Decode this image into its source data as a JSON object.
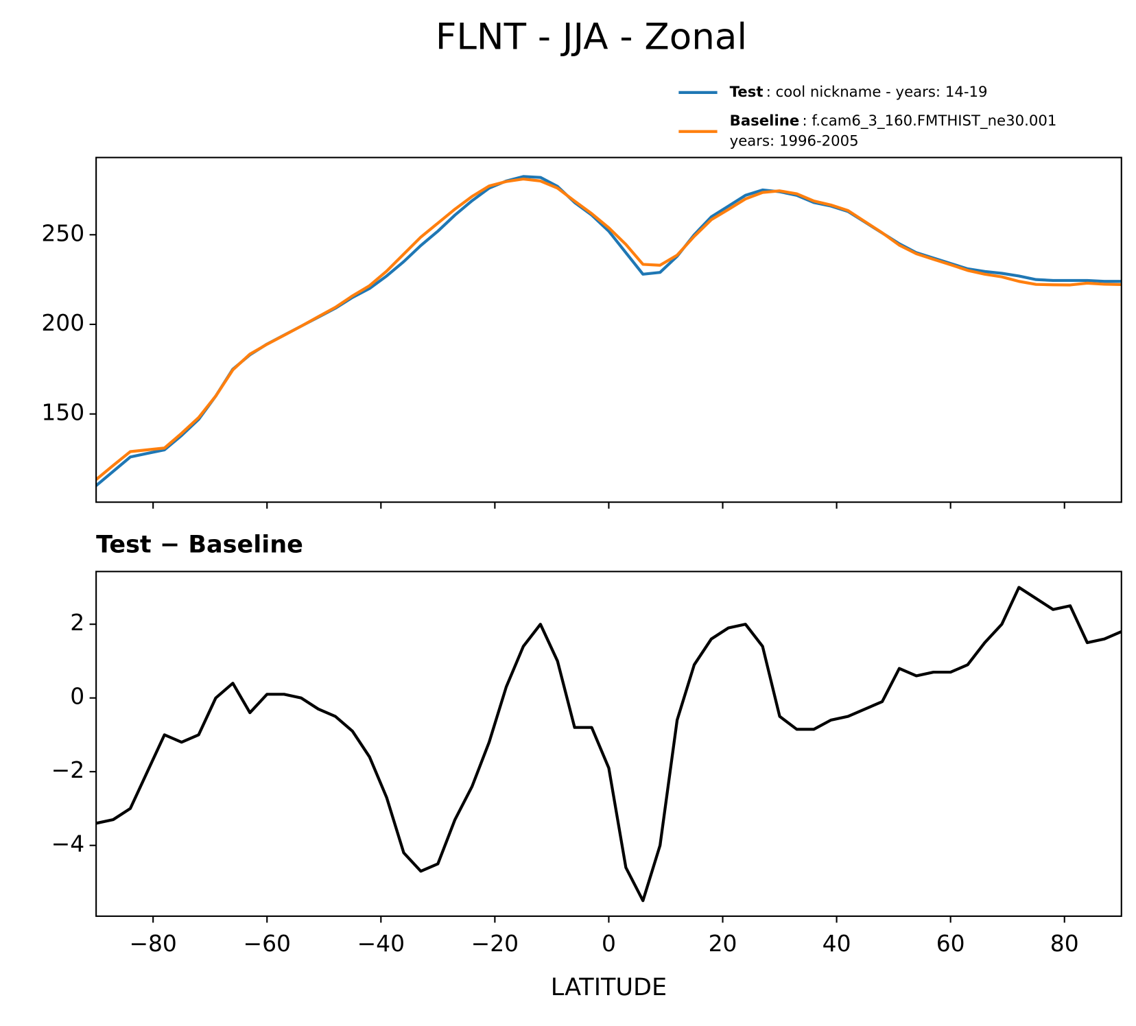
{
  "title": "FLNT - JJA - Zonal",
  "chart_data": [
    {
      "type": "line",
      "x": [
        -90,
        -87,
        -84,
        -81,
        -78,
        -75,
        -72,
        -69,
        -66,
        -63,
        -60,
        -57,
        -54,
        -51,
        -48,
        -45,
        -42,
        -39,
        -36,
        -33,
        -30,
        -27,
        -24,
        -21,
        -18,
        -15,
        -12,
        -9,
        -6,
        -3,
        0,
        3,
        6,
        9,
        12,
        15,
        18,
        21,
        24,
        27,
        30,
        33,
        36,
        39,
        42,
        45,
        48,
        51,
        54,
        57,
        60,
        63,
        66,
        69,
        72,
        75,
        78,
        81,
        84,
        87,
        90
      ],
      "series": [
        {
          "name": "Test",
          "description": [
            ": cool nickname - years: 14-19"
          ],
          "color": "#1f77b4",
          "values": [
            110,
            118,
            126,
            128,
            130,
            138,
            147,
            160,
            175,
            183,
            189,
            194,
            199,
            204,
            209,
            215,
            220,
            227,
            235,
            244,
            252,
            261,
            269,
            276,
            280,
            282.5,
            282,
            277,
            268,
            261,
            252,
            240,
            228,
            229,
            238,
            250,
            260,
            266,
            272,
            275,
            274,
            272,
            268,
            266,
            263,
            257,
            251,
            245,
            240,
            237,
            234,
            231,
            229.5,
            228.5,
            227,
            225,
            224.5,
            224.5,
            224.5,
            224,
            224
          ]
        },
        {
          "name": "Baseline",
          "description": [
            ": f.cam6_3_160.FMTHIST_ne30.001",
            "years: 1996-2005"
          ],
          "color": "#ff7f0e",
          "values": [
            113.4,
            121.3,
            129,
            130,
            131,
            139.2,
            148,
            160,
            174.6,
            183.4,
            188.9,
            193.9,
            199,
            204.3,
            209.5,
            215.9,
            221.6,
            229.7,
            239.2,
            248.7,
            256.5,
            264.3,
            271.4,
            277.2,
            279.7,
            281.1,
            280,
            276,
            268.8,
            261.8,
            253.9,
            244.6,
            233.5,
            233,
            238.6,
            249.1,
            258.4,
            264.1,
            270,
            273.6,
            274.5,
            272.85,
            268.85,
            266.6,
            263.5,
            257.3,
            251.1,
            244.2,
            239.4,
            236.3,
            233.3,
            230.1,
            228,
            226.5,
            224,
            222.3,
            222.1,
            222,
            223,
            222.4,
            222.2
          ]
        }
      ],
      "xlim": [
        -90,
        90
      ],
      "xticks": [
        -80,
        -60,
        -40,
        -20,
        0,
        20,
        40,
        60,
        80
      ],
      "ylim": [
        100.8,
        293.1
      ],
      "yticks": [
        150,
        200,
        250
      ]
    },
    {
      "type": "line",
      "title": "Test − Baseline",
      "xlabel": "LATITUDE",
      "x": [
        -90,
        -87,
        -84,
        -81,
        -78,
        -75,
        -72,
        -69,
        -66,
        -63,
        -60,
        -57,
        -54,
        -51,
        -48,
        -45,
        -42,
        -39,
        -36,
        -33,
        -30,
        -27,
        -24,
        -21,
        -18,
        -15,
        -12,
        -9,
        -6,
        -3,
        0,
        3,
        6,
        9,
        12,
        15,
        18,
        21,
        24,
        27,
        30,
        33,
        36,
        39,
        42,
        45,
        48,
        51,
        54,
        57,
        60,
        63,
        66,
        69,
        72,
        75,
        78,
        81,
        84,
        87,
        90
      ],
      "series": [
        {
          "color": "#000000",
          "values": [
            -3.4,
            -3.3,
            -3.0,
            -2.0,
            -1.0,
            -1.2,
            -1.0,
            0.0,
            0.4,
            -0.4,
            0.1,
            0.1,
            0.0,
            -0.3,
            -0.5,
            -0.9,
            -1.6,
            -2.7,
            -4.2,
            -4.7,
            -4.5,
            -3.3,
            -2.4,
            -1.2,
            0.3,
            1.4,
            2.0,
            1.0,
            -0.8,
            -0.8,
            -1.9,
            -4.6,
            -5.5,
            -4.0,
            -0.6,
            0.9,
            1.6,
            1.9,
            2.0,
            1.4,
            -0.5,
            -0.85,
            -0.85,
            -0.6,
            -0.5,
            -0.3,
            -0.1,
            0.8,
            0.6,
            0.7,
            0.7,
            0.9,
            1.5,
            2.0,
            3.0,
            2.7,
            2.4,
            2.5,
            1.5,
            1.6,
            1.8
          ]
        }
      ],
      "xlim": [
        -90,
        90
      ],
      "xticks": [
        {
          "value": -80,
          "label": "−80"
        },
        {
          "value": -60,
          "label": "−60"
        },
        {
          "value": -40,
          "label": "−40"
        },
        {
          "value": -20,
          "label": "−20"
        },
        0,
        20,
        40,
        60,
        80
      ],
      "ylim": [
        -5.92,
        3.43
      ],
      "yticks": [
        {
          "value": -4,
          "label": "−4"
        },
        {
          "value": -2,
          "label": "−2"
        },
        0,
        2
      ]
    }
  ]
}
